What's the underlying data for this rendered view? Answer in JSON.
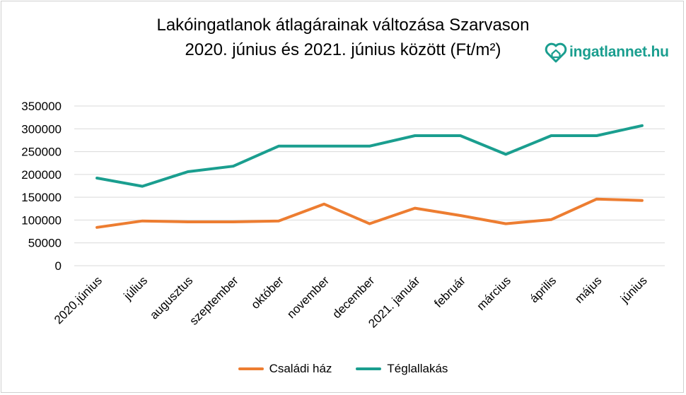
{
  "brand": {
    "logo_text": "ingatlannet",
    "logo_tld": ".hu",
    "logo_color": "#1a9e8f"
  },
  "chart_data": {
    "type": "line",
    "title": "Lakóingatlanok átlagárainak változása Szarvason",
    "subtitle": "2020. június és 2021. június között (Ft/m²)",
    "xlabel": "",
    "ylabel": "",
    "ylim": [
      0,
      350000
    ],
    "y_ticks": [
      "0",
      "50000",
      "100000",
      "150000",
      "200000",
      "250000",
      "300000",
      "350000"
    ],
    "grid": true,
    "legend_position": "bottom",
    "categories": [
      "2020.június",
      "július",
      "augusztus",
      "szeptember",
      "október",
      "november",
      "december",
      "2021. január",
      "február",
      "március",
      "április",
      "május",
      "június"
    ],
    "series": [
      {
        "name": "Családi ház",
        "color": "#ed7d31",
        "values": [
          84000,
          98000,
          96000,
          96000,
          98000,
          135000,
          92000,
          126000,
          110000,
          92000,
          101000,
          146000,
          143000
        ]
      },
      {
        "name": "Téglallakás",
        "color": "#1a9e8f",
        "values": [
          192000,
          174000,
          206000,
          218000,
          262000,
          262000,
          262000,
          285000,
          285000,
          244000,
          285000,
          285000,
          307000
        ]
      }
    ]
  }
}
